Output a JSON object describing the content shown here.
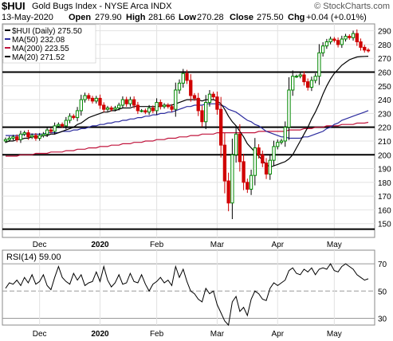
{
  "header": {
    "symbol": "$HUI",
    "name": "Gold Bugs Index - NYSE Arca  INDX",
    "watermark": "© StockCharts.com",
    "date": "13-May-2020",
    "open_label": "Open",
    "open": "279.90",
    "high_label": "High",
    "high": "281.66",
    "low_label": "Low",
    "low": "270.28",
    "close_label": "Close",
    "close": "275.50",
    "chg_label": "Chg",
    "chg": "+0.04 (+0.01%)"
  },
  "legend": [
    {
      "label": "$HUI (Daily) 275.50",
      "color": "#000000"
    },
    {
      "label": "MA(50) 232.08",
      "color": "#2b2b9e"
    },
    {
      "label": "MA(200) 223.55",
      "color": "#c0143c"
    },
    {
      "label": "MA(20) 271.52",
      "color": "#000000"
    }
  ],
  "rsi_legend": "RSI(14) 59.00",
  "chart_data": [
    {
      "type": "candlestick",
      "title": "$HUI (Daily)",
      "ylim": [
        140,
        295
      ],
      "y_ticks": [
        150,
        160,
        170,
        180,
        190,
        200,
        210,
        220,
        230,
        240,
        250,
        260,
        270,
        280,
        290
      ],
      "x_labels": [
        "Dec",
        "2020",
        "Feb",
        "Mar",
        "Apr",
        "May"
      ],
      "horizontal_lines": [
        260,
        220,
        200,
        146
      ],
      "grid": true,
      "close_series": [
        211,
        212,
        213,
        211,
        215,
        216,
        213,
        214,
        212,
        214,
        215,
        218,
        217,
        221,
        222,
        221,
        225,
        228,
        227,
        232,
        240,
        243,
        241,
        239,
        241,
        236,
        233,
        234,
        233,
        234,
        236,
        240,
        237,
        240,
        236,
        232,
        232,
        231,
        234,
        232,
        238,
        235,
        236,
        235,
        233,
        247,
        252,
        259,
        254,
        243,
        241,
        232,
        224,
        238,
        244,
        242,
        233,
        207,
        181,
        165,
        200,
        215,
        195,
        180,
        175,
        185,
        205,
        200,
        194,
        186,
        196,
        206,
        209,
        210,
        220,
        247,
        257,
        257,
        258,
        253,
        249,
        254,
        257,
        274,
        279,
        282,
        284,
        283,
        280,
        284,
        286,
        285,
        288,
        282,
        278,
        276,
        275.5
      ],
      "ma20": [
        209,
        210,
        210,
        211,
        211,
        212,
        212,
        213,
        213,
        213,
        214,
        214,
        215,
        215,
        216,
        217,
        218,
        219,
        220,
        222,
        223,
        225,
        227,
        228,
        229,
        230,
        231,
        231,
        232,
        232,
        233,
        234,
        234,
        234,
        235,
        235,
        235,
        235,
        235,
        235,
        235,
        235,
        236,
        236,
        236,
        237,
        238,
        239,
        240,
        240,
        240,
        240,
        239,
        240,
        240,
        240,
        239,
        237,
        233,
        228,
        224,
        221,
        217,
        213,
        208,
        205,
        202,
        199,
        196,
        193,
        191,
        192,
        193,
        194,
        195,
        197,
        200,
        205,
        210,
        215,
        220,
        226,
        231,
        237,
        244,
        250,
        255,
        259,
        262,
        265,
        267,
        269,
        270,
        271,
        271.3,
        271.4,
        271.52
      ],
      "ma50": [
        214,
        214,
        214,
        214,
        214,
        215,
        215,
        215,
        215,
        215,
        215,
        216,
        216,
        216,
        216,
        217,
        217,
        217,
        218,
        218,
        219,
        219,
        220,
        221,
        221,
        222,
        222,
        223,
        223,
        224,
        224,
        225,
        225,
        226,
        226,
        227,
        227,
        228,
        228,
        229,
        229,
        230,
        230,
        231,
        231,
        232,
        233,
        234,
        235,
        235,
        236,
        236,
        236,
        237,
        237,
        237,
        237,
        236,
        235,
        233,
        232,
        231,
        229,
        227,
        225,
        224,
        222,
        221,
        219,
        217,
        216,
        215,
        214,
        213,
        213,
        212,
        212,
        212,
        212,
        213,
        213,
        214,
        215,
        216,
        217,
        219,
        220,
        222,
        223,
        225,
        226,
        227,
        228,
        229,
        230,
        231,
        232.08
      ],
      "ma200": [
        199,
        199,
        199,
        199,
        200,
        200,
        200,
        200,
        201,
        201,
        201,
        201,
        202,
        202,
        202,
        202,
        203,
        203,
        203,
        204,
        204,
        204,
        205,
        205,
        205,
        206,
        206,
        206,
        207,
        207,
        207,
        208,
        208,
        208,
        209,
        209,
        209,
        210,
        210,
        210,
        211,
        211,
        211,
        212,
        212,
        212,
        213,
        213,
        213,
        214,
        214,
        214,
        215,
        215,
        215,
        215,
        216,
        216,
        216,
        216,
        216,
        216,
        216,
        216,
        216,
        216,
        216,
        217,
        217,
        217,
        217,
        217,
        217,
        217,
        217,
        218,
        218,
        218,
        218,
        219,
        219,
        219,
        220,
        220,
        220,
        221,
        221,
        221,
        221,
        222,
        222,
        222,
        222,
        223,
        223,
        223,
        223.55
      ]
    },
    {
      "type": "line",
      "title": "RSI(14)",
      "ylim": [
        25,
        80
      ],
      "y_ticks": [
        30,
        50,
        70
      ],
      "reference_lines": [
        70,
        50,
        30
      ],
      "x_labels": [
        "Dec",
        "2020",
        "Feb",
        "Mar",
        "Apr",
        "May"
      ],
      "values": [
        52,
        56,
        55,
        58,
        54,
        60,
        56,
        62,
        55,
        57,
        62,
        54,
        51,
        60,
        68,
        60,
        57,
        55,
        63,
        58,
        62,
        54,
        56,
        57,
        64,
        57,
        68,
        58,
        53,
        56,
        62,
        55,
        56,
        63,
        57,
        56,
        62,
        55,
        50,
        55,
        57,
        60,
        56,
        58,
        54,
        68,
        60,
        66,
        57,
        50,
        48,
        44,
        42,
        52,
        48,
        50,
        40,
        34,
        28,
        25,
        42,
        46,
        35,
        38,
        32,
        44,
        50,
        48,
        44,
        43,
        52,
        56,
        54,
        56,
        58,
        65,
        67,
        63,
        62,
        66,
        64,
        67,
        62,
        66,
        67,
        66,
        70,
        65,
        64,
        68,
        70,
        68,
        66,
        62,
        60,
        58,
        59
      ]
    }
  ]
}
